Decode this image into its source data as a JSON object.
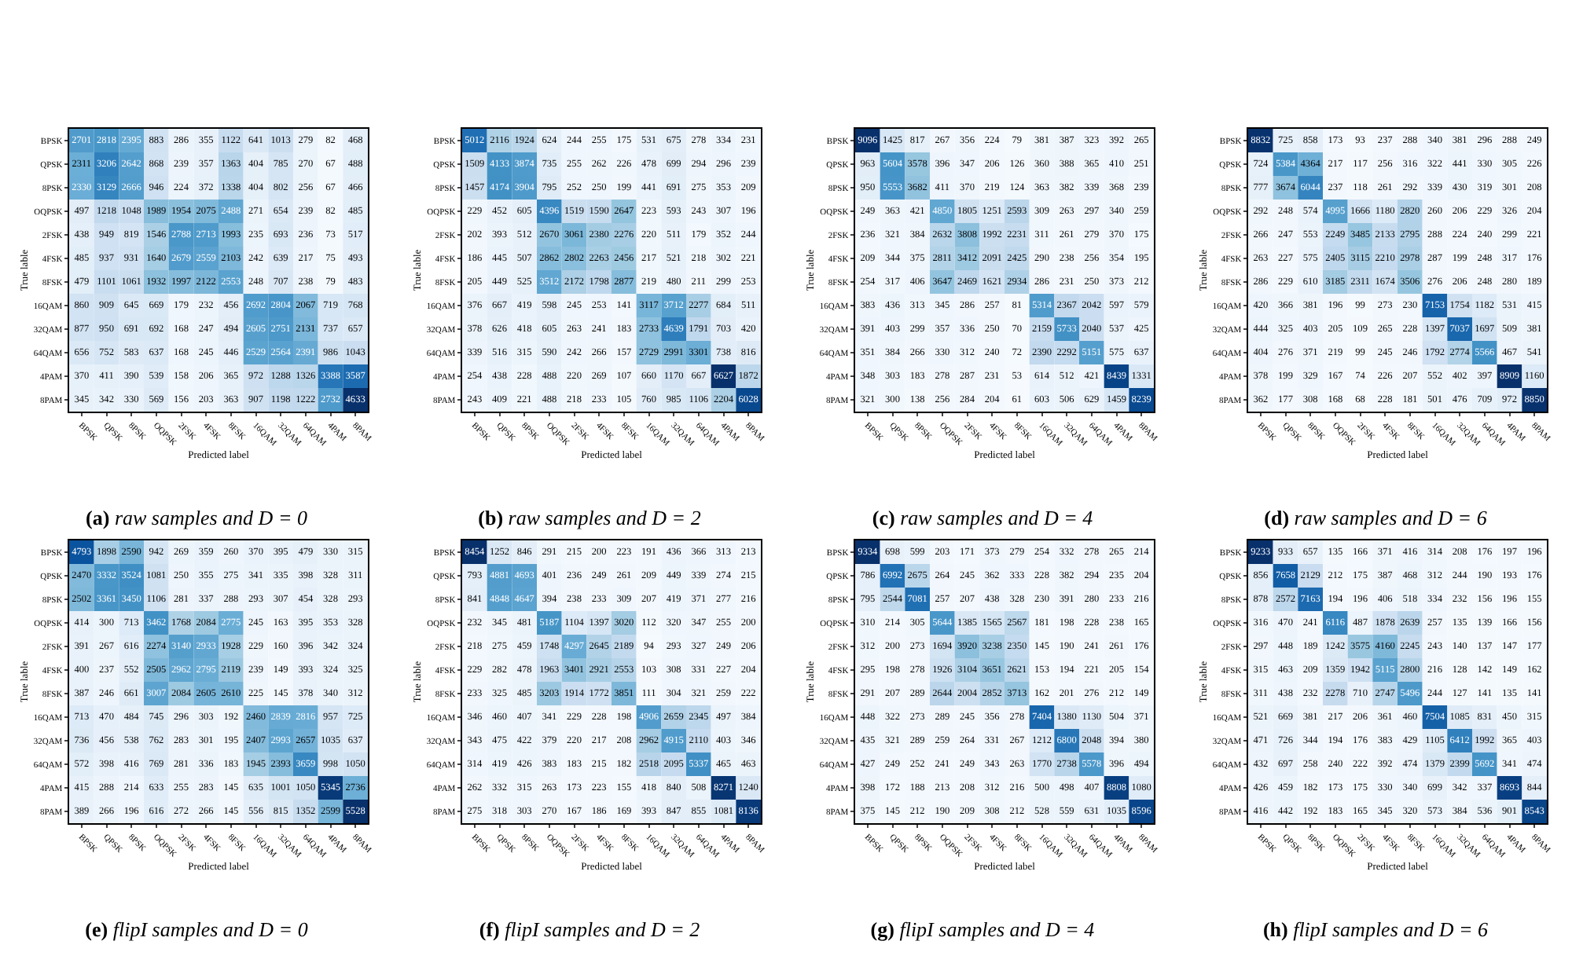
{
  "chart_data": [
    {
      "type": "heatmap",
      "title": "(a) raw samples and D = 0",
      "xlabel": "Predicted label",
      "ylabel": "True lable",
      "data_labels": true,
      "categories": [
        "BPSK",
        "QPSK",
        "8PSK",
        "OQPSK",
        "2FSK",
        "4FSK",
        "8FSK",
        "16QAM",
        "32QAM",
        "64QAM",
        "4PAM",
        "8PAM"
      ],
      "y_categories": [
        "BPSK",
        "QPSK",
        "8PSK",
        "OQPSK",
        "2FSK",
        "4FSK",
        "8FSK",
        "16QAM",
        "32QAM",
        "64QAM",
        "4PAM",
        "8PAM"
      ],
      "cells": [
        [
          2701,
          2818,
          2395,
          883,
          286,
          355,
          1122,
          641,
          1013,
          279,
          82,
          468
        ],
        [
          2311,
          3206,
          2642,
          868,
          239,
          357,
          1363,
          404,
          785,
          270,
          67,
          488
        ],
        [
          2330,
          3129,
          2666,
          946,
          224,
          372,
          1338,
          404,
          802,
          256,
          67,
          466
        ],
        [
          497,
          1218,
          1048,
          1989,
          1954,
          2075,
          2488,
          271,
          654,
          239,
          82,
          485
        ],
        [
          438,
          949,
          819,
          1546,
          2788,
          2713,
          1993,
          235,
          693,
          236,
          73,
          517
        ],
        [
          485,
          937,
          931,
          1640,
          2679,
          2559,
          2103,
          242,
          639,
          217,
          75,
          493
        ],
        [
          479,
          1101,
          1061,
          1932,
          1997,
          2122,
          2553,
          248,
          707,
          238,
          79,
          483
        ],
        [
          860,
          909,
          645,
          669,
          179,
          232,
          456,
          2692,
          2804,
          2067,
          719,
          768
        ],
        [
          877,
          950,
          691,
          692,
          168,
          247,
          494,
          2605,
          2751,
          2131,
          737,
          657
        ],
        [
          656,
          752,
          583,
          637,
          168,
          245,
          446,
          2529,
          2564,
          2391,
          986,
          1043
        ],
        [
          370,
          411,
          390,
          539,
          158,
          206,
          365,
          972,
          1288,
          1326,
          3388,
          3587
        ],
        [
          345,
          342,
          330,
          569,
          156,
          203,
          363,
          907,
          1198,
          1222,
          2732,
          4633
        ]
      ]
    },
    {
      "type": "heatmap",
      "title": "(b) raw samples and D = 2",
      "xlabel": "Predicted label",
      "ylabel": "True lable",
      "data_labels": true,
      "categories": [
        "BPSK",
        "QPSK",
        "8PSK",
        "OQPSK",
        "2FSK",
        "4FSK",
        "8FSK",
        "16QAM",
        "32QAM",
        "64QAM",
        "4PAM",
        "8PAM"
      ],
      "y_categories": [
        "BPSK",
        "QPSK",
        "8PSK",
        "OQPSK",
        "2FSK",
        "4FSK",
        "8FSK",
        "16QAM",
        "32QAM",
        "64QAM",
        "4PAM",
        "8PAM"
      ],
      "cells": [
        [
          5012,
          2116,
          1924,
          624,
          244,
          255,
          175,
          531,
          675,
          278,
          334,
          231
        ],
        [
          1509,
          4133,
          3874,
          735,
          255,
          262,
          226,
          478,
          699,
          294,
          296,
          239
        ],
        [
          1457,
          4174,
          3904,
          795,
          252,
          250,
          199,
          441,
          691,
          275,
          353,
          209
        ],
        [
          229,
          452,
          605,
          4396,
          1519,
          1590,
          2647,
          223,
          593,
          243,
          307,
          196
        ],
        [
          202,
          393,
          512,
          2670,
          3061,
          2380,
          2276,
          220,
          511,
          179,
          352,
          244
        ],
        [
          186,
          445,
          507,
          2862,
          2802,
          2263,
          2456,
          217,
          521,
          218,
          302,
          221
        ],
        [
          205,
          449,
          525,
          3512,
          2172,
          1798,
          2877,
          219,
          480,
          211,
          299,
          253
        ],
        [
          376,
          667,
          419,
          598,
          245,
          253,
          141,
          3117,
          3712,
          2277,
          684,
          511
        ],
        [
          378,
          626,
          418,
          605,
          263,
          241,
          183,
          2733,
          4639,
          1791,
          703,
          420
        ],
        [
          339,
          516,
          315,
          590,
          242,
          266,
          157,
          2729,
          2991,
          3301,
          738,
          816
        ],
        [
          254,
          438,
          228,
          488,
          220,
          269,
          107,
          660,
          1170,
          667,
          6627,
          1872
        ],
        [
          243,
          409,
          221,
          488,
          218,
          233,
          105,
          760,
          985,
          1106,
          2204,
          6028
        ]
      ]
    },
    {
      "type": "heatmap",
      "title": "(c) raw samples and D = 4",
      "xlabel": "Predicted label",
      "ylabel": "True lable",
      "data_labels": true,
      "categories": [
        "BPSK",
        "QPSK",
        "8PSK",
        "OQPSK",
        "2FSK",
        "4FSK",
        "8FSK",
        "16QAM",
        "32QAM",
        "64QAM",
        "4PAM",
        "8PAM"
      ],
      "y_categories": [
        "BPSK",
        "QPSK",
        "8PSK",
        "OQPSK",
        "2FSK",
        "4FSK",
        "8FSK",
        "16QAM",
        "32QAM",
        "64QAM",
        "4PAM",
        "8PAM"
      ],
      "cells": [
        [
          9096,
          1425,
          817,
          267,
          356,
          224,
          79,
          381,
          387,
          323,
          392,
          265
        ],
        [
          963,
          5604,
          3578,
          396,
          347,
          206,
          126,
          360,
          388,
          365,
          410,
          251
        ],
        [
          950,
          5553,
          3682,
          411,
          370,
          219,
          124,
          363,
          382,
          339,
          368,
          239
        ],
        [
          249,
          363,
          421,
          4850,
          1805,
          1251,
          2593,
          309,
          263,
          297,
          340,
          259
        ],
        [
          236,
          321,
          384,
          2632,
          3808,
          1992,
          2231,
          311,
          261,
          279,
          370,
          175
        ],
        [
          209,
          344,
          375,
          2811,
          3412,
          2091,
          2425,
          290,
          238,
          256,
          354,
          195
        ],
        [
          254,
          317,
          406,
          3647,
          2469,
          1621,
          2934,
          286,
          231,
          250,
          373,
          212
        ],
        [
          383,
          436,
          313,
          345,
          286,
          257,
          81,
          5314,
          2367,
          2042,
          597,
          579
        ],
        [
          391,
          403,
          299,
          357,
          336,
          250,
          70,
          2159,
          5733,
          2040,
          537,
          425
        ],
        [
          351,
          384,
          266,
          330,
          312,
          240,
          72,
          2390,
          2292,
          5151,
          575,
          637
        ],
        [
          348,
          303,
          183,
          278,
          287,
          231,
          53,
          614,
          512,
          421,
          8439,
          1331
        ],
        [
          321,
          300,
          138,
          256,
          284,
          204,
          61,
          603,
          506,
          629,
          1459,
          8239
        ]
      ]
    },
    {
      "type": "heatmap",
      "title": "(d) raw samples and D = 6",
      "xlabel": "Predicted label",
      "ylabel": "True lable",
      "data_labels": true,
      "categories": [
        "BPSK",
        "QPSK",
        "8PSK",
        "OQPSK",
        "2FSK",
        "4FSK",
        "8FSK",
        "16QAM",
        "32QAM",
        "64QAM",
        "4PAM",
        "8PAM"
      ],
      "y_categories": [
        "BPSK",
        "QPSK",
        "8PSK",
        "OQPSK",
        "2FSK",
        "4FSK",
        "8FSK",
        "16QAM",
        "32QAM",
        "64QAM",
        "4PAM",
        "8PAM"
      ],
      "cells": [
        [
          8832,
          725,
          858,
          173,
          93,
          237,
          288,
          340,
          381,
          296,
          288,
          249
        ],
        [
          724,
          5384,
          4364,
          217,
          117,
          256,
          316,
          322,
          441,
          330,
          305,
          226
        ],
        [
          777,
          3674,
          6044,
          237,
          118,
          261,
          292,
          339,
          430,
          319,
          301,
          208
        ],
        [
          292,
          248,
          574,
          4995,
          1666,
          1180,
          2820,
          260,
          206,
          229,
          326,
          204
        ],
        [
          266,
          247,
          553,
          2249,
          3485,
          2133,
          2795,
          288,
          224,
          240,
          299,
          221
        ],
        [
          263,
          227,
          575,
          2405,
          3115,
          2210,
          2978,
          287,
          199,
          248,
          317,
          176
        ],
        [
          286,
          229,
          610,
          3185,
          2311,
          1674,
          3506,
          276,
          206,
          248,
          280,
          189
        ],
        [
          420,
          366,
          381,
          196,
          99,
          273,
          230,
          7153,
          1754,
          1182,
          531,
          415
        ],
        [
          444,
          325,
          403,
          205,
          109,
          265,
          228,
          1397,
          7037,
          1697,
          509,
          381
        ],
        [
          404,
          276,
          371,
          219,
          99,
          245,
          246,
          1792,
          2774,
          5566,
          467,
          541
        ],
        [
          378,
          199,
          329,
          167,
          74,
          226,
          207,
          552,
          402,
          397,
          8909,
          1160
        ],
        [
          362,
          177,
          308,
          168,
          68,
          228,
          181,
          501,
          476,
          709,
          972,
          8850
        ]
      ]
    },
    {
      "type": "heatmap",
      "title": "(e) flipI samples and D = 0",
      "xlabel": "Predicted label",
      "ylabel": "True lable",
      "data_labels": true,
      "categories": [
        "BPSK",
        "QPSK",
        "8PSK",
        "OQPSK",
        "2FSK",
        "4FSK",
        "8FSK",
        "16QAM",
        "32QAM",
        "64QAM",
        "4PAM",
        "8PAM"
      ],
      "y_categories": [
        "BPSK",
        "QPSK",
        "8PSK",
        "OQPSK",
        "2FSK",
        "4FSK",
        "8FSK",
        "16QAM",
        "32QAM",
        "64QAM",
        "4PAM",
        "8PAM"
      ],
      "cells": [
        [
          4793,
          1898,
          2590,
          942,
          269,
          359,
          260,
          370,
          395,
          479,
          330,
          315
        ],
        [
          2470,
          3332,
          3524,
          1081,
          250,
          355,
          275,
          341,
          335,
          398,
          328,
          311
        ],
        [
          2502,
          3361,
          3450,
          1106,
          281,
          337,
          288,
          293,
          307,
          454,
          328,
          293
        ],
        [
          414,
          300,
          713,
          3462,
          1768,
          2084,
          2775,
          245,
          163,
          395,
          353,
          328
        ],
        [
          391,
          267,
          616,
          2274,
          3140,
          2933,
          1928,
          229,
          160,
          396,
          342,
          324
        ],
        [
          400,
          237,
          552,
          2505,
          2962,
          2795,
          2119,
          239,
          149,
          393,
          324,
          325
        ],
        [
          387,
          246,
          661,
          3007,
          2084,
          2605,
          2610,
          225,
          145,
          378,
          340,
          312
        ],
        [
          713,
          470,
          484,
          745,
          296,
          303,
          192,
          2460,
          2839,
          2816,
          957,
          725
        ],
        [
          736,
          456,
          538,
          762,
          283,
          301,
          195,
          2407,
          2993,
          2657,
          1035,
          637
        ],
        [
          572,
          398,
          416,
          769,
          281,
          336,
          183,
          1945,
          2393,
          3659,
          998,
          1050
        ],
        [
          415,
          288,
          214,
          633,
          255,
          283,
          145,
          635,
          1001,
          1050,
          5345,
          2736
        ],
        [
          389,
          266,
          196,
          616,
          272,
          266,
          145,
          556,
          815,
          1352,
          2599,
          5528
        ]
      ]
    },
    {
      "type": "heatmap",
      "title": "(f) flipI samples and D = 2",
      "xlabel": "Predicted label",
      "ylabel": "True lable",
      "data_labels": true,
      "categories": [
        "BPSK",
        "QPSK",
        "8PSK",
        "OQPSK",
        "2FSK",
        "4FSK",
        "8FSK",
        "16QAM",
        "32QAM",
        "64QAM",
        "4PAM",
        "8PAM"
      ],
      "y_categories": [
        "BPSK",
        "QPSK",
        "8PSK",
        "OQPSK",
        "2FSK",
        "4FSK",
        "8FSK",
        "16QAM",
        "32QAM",
        "64QAM",
        "4PAM",
        "8PAM"
      ],
      "cells": [
        [
          8454,
          1252,
          846,
          291,
          215,
          200,
          223,
          191,
          436,
          366,
          313,
          213
        ],
        [
          793,
          4881,
          4693,
          401,
          236,
          249,
          261,
          209,
          449,
          339,
          274,
          215
        ],
        [
          841,
          4848,
          4647,
          394,
          238,
          233,
          309,
          207,
          419,
          371,
          277,
          216
        ],
        [
          232,
          345,
          481,
          5187,
          1104,
          1397,
          3020,
          112,
          320,
          347,
          255,
          200
        ],
        [
          218,
          275,
          459,
          1748,
          4297,
          2645,
          2189,
          94,
          293,
          327,
          249,
          206
        ],
        [
          229,
          282,
          478,
          1963,
          3401,
          2921,
          2553,
          103,
          308,
          331,
          227,
          204
        ],
        [
          233,
          325,
          485,
          3203,
          1914,
          1772,
          3851,
          111,
          304,
          321,
          259,
          222
        ],
        [
          346,
          460,
          407,
          341,
          229,
          228,
          198,
          4906,
          2659,
          2345,
          497,
          384
        ],
        [
          343,
          475,
          422,
          379,
          220,
          217,
          208,
          2962,
          4915,
          2110,
          403,
          346
        ],
        [
          314,
          419,
          426,
          383,
          183,
          215,
          182,
          2518,
          2095,
          5337,
          465,
          463
        ],
        [
          262,
          332,
          315,
          263,
          173,
          223,
          155,
          418,
          840,
          508,
          8271,
          1240
        ],
        [
          275,
          318,
          303,
          270,
          167,
          186,
          169,
          393,
          847,
          855,
          1081,
          8136
        ]
      ]
    },
    {
      "type": "heatmap",
      "title": "(g) flipI samples and D = 4",
      "xlabel": "Predicted label",
      "ylabel": "True lable",
      "data_labels": true,
      "categories": [
        "BPSK",
        "QPSK",
        "8PSK",
        "OQPSK",
        "2FSK",
        "4FSK",
        "8FSK",
        "16QAM",
        "32QAM",
        "64QAM",
        "4PAM",
        "8PAM"
      ],
      "y_categories": [
        "BPSK",
        "QPSK",
        "8PSK",
        "OQPSK",
        "2FSK",
        "4FSK",
        "8FSK",
        "16QAM",
        "32QAM",
        "64QAM",
        "4PAM",
        "8PAM"
      ],
      "cells": [
        [
          9334,
          698,
          599,
          203,
          171,
          373,
          279,
          254,
          332,
          278,
          265,
          214
        ],
        [
          786,
          6992,
          2675,
          264,
          245,
          362,
          333,
          228,
          382,
          294,
          235,
          204
        ],
        [
          795,
          2544,
          7081,
          257,
          207,
          438,
          328,
          230,
          391,
          280,
          233,
          216
        ],
        [
          310,
          214,
          305,
          5644,
          1385,
          1565,
          2567,
          181,
          198,
          228,
          238,
          165
        ],
        [
          312,
          200,
          273,
          1694,
          3920,
          3238,
          2350,
          145,
          190,
          241,
          261,
          176
        ],
        [
          295,
          198,
          278,
          1926,
          3104,
          3651,
          2621,
          153,
          194,
          221,
          205,
          154
        ],
        [
          291,
          207,
          289,
          2644,
          2004,
          2852,
          3713,
          162,
          201,
          276,
          212,
          149
        ],
        [
          448,
          322,
          273,
          289,
          245,
          356,
          278,
          7404,
          1380,
          1130,
          504,
          371
        ],
        [
          435,
          321,
          289,
          259,
          264,
          331,
          267,
          1212,
          6800,
          2048,
          394,
          380
        ],
        [
          427,
          249,
          252,
          241,
          249,
          343,
          263,
          1770,
          2738,
          5578,
          396,
          494
        ],
        [
          398,
          172,
          188,
          213,
          208,
          312,
          216,
          500,
          498,
          407,
          8808,
          1080
        ],
        [
          375,
          145,
          212,
          190,
          209,
          308,
          212,
          528,
          559,
          631,
          1035,
          8596
        ]
      ]
    },
    {
      "type": "heatmap",
      "title": "(h) flipI samples and D = 6",
      "xlabel": "Predicted label",
      "ylabel": "True lable",
      "data_labels": true,
      "categories": [
        "BPSK",
        "QPSK",
        "8PSK",
        "OQPSK",
        "2FSK",
        "4FSK",
        "8FSK",
        "16QAM",
        "32QAM",
        "64QAM",
        "4PAM",
        "8PAM"
      ],
      "y_categories": [
        "BPSK",
        "QPSK",
        "8PSK",
        "OQPSK",
        "2FSK",
        "4FSK",
        "8FSK",
        "16QAM",
        "32QAM",
        "64QAM",
        "4PAM",
        "8PAM"
      ],
      "cells": [
        [
          9233,
          933,
          657,
          135,
          166,
          371,
          416,
          314,
          208,
          176,
          197,
          196
        ],
        [
          856,
          7658,
          2129,
          212,
          175,
          387,
          468,
          312,
          244,
          190,
          193,
          176
        ],
        [
          878,
          2572,
          7163,
          194,
          196,
          406,
          518,
          334,
          232,
          156,
          196,
          155
        ],
        [
          316,
          470,
          241,
          6116,
          487,
          1878,
          2639,
          257,
          135,
          139,
          166,
          156
        ],
        [
          297,
          448,
          189,
          1242,
          3575,
          4160,
          2245,
          243,
          140,
          137,
          147,
          177
        ],
        [
          315,
          463,
          209,
          1359,
          1942,
          5115,
          2800,
          216,
          128,
          142,
          149,
          162
        ],
        [
          311,
          438,
          232,
          2278,
          710,
          2747,
          5496,
          244,
          127,
          141,
          135,
          141
        ],
        [
          521,
          669,
          381,
          217,
          206,
          361,
          460,
          7504,
          1085,
          831,
          450,
          315
        ],
        [
          471,
          726,
          344,
          194,
          176,
          383,
          429,
          1105,
          6412,
          1992,
          365,
          403
        ],
        [
          432,
          697,
          258,
          240,
          222,
          392,
          474,
          1379,
          2399,
          5692,
          341,
          474
        ],
        [
          426,
          459,
          182,
          173,
          175,
          330,
          340,
          699,
          342,
          337,
          8693,
          844
        ],
        [
          416,
          442,
          192,
          183,
          165,
          345,
          320,
          573,
          384,
          536,
          901,
          8543
        ]
      ]
    }
  ]
}
